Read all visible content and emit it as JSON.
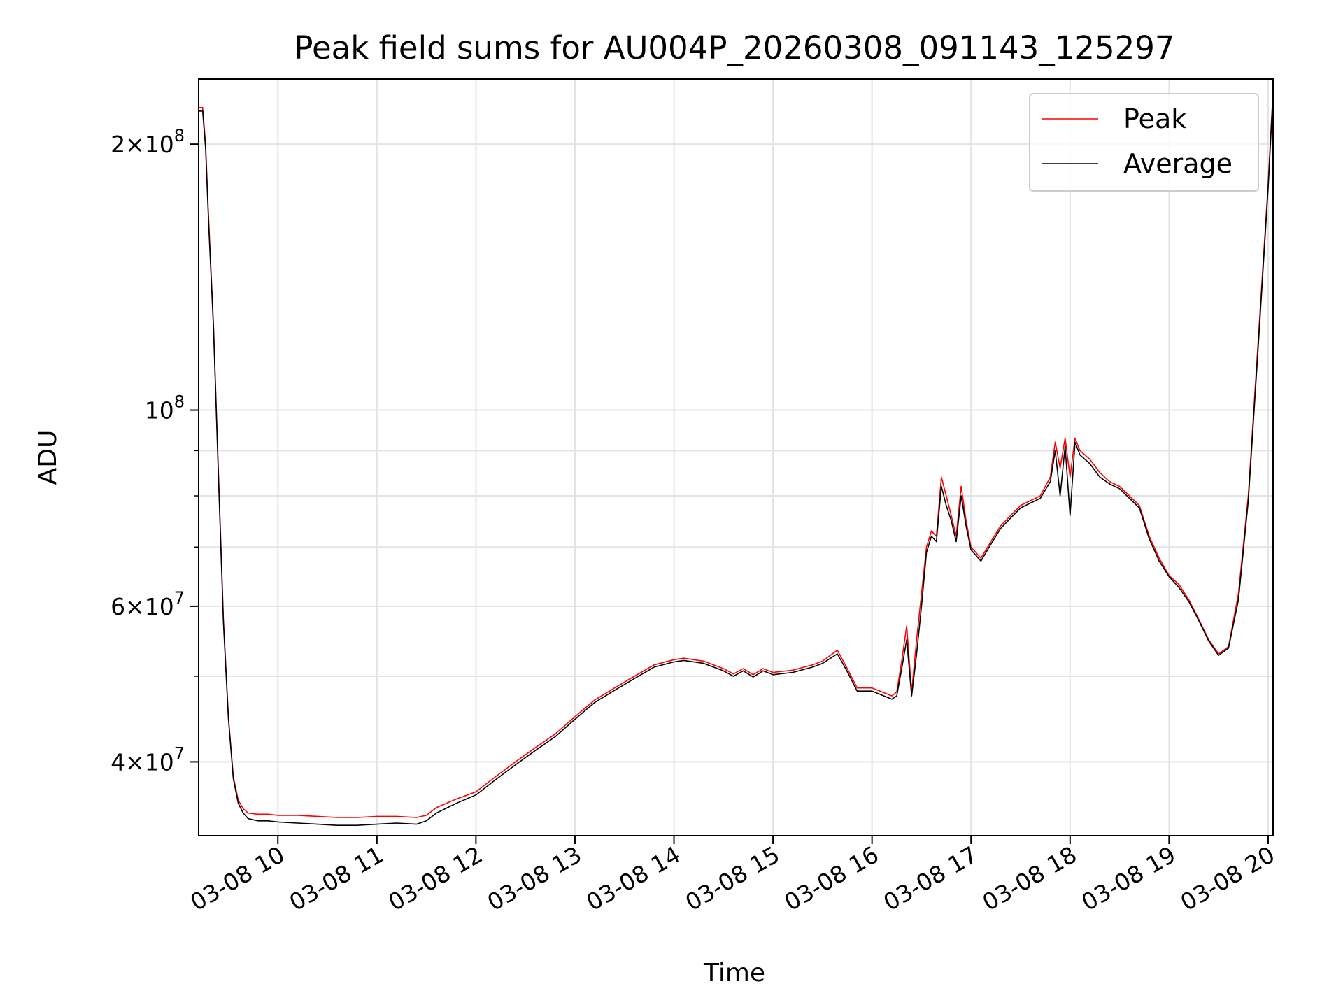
{
  "chart_data": {
    "type": "line",
    "title": "Peak field sums for AU004P_20260308_091143_125297",
    "xlabel": "Time",
    "ylabel": "ADU",
    "y_scale": "log",
    "x_unit": "hour of 2026-03-08",
    "xlim": [
      9.2,
      20.05
    ],
    "ylim": [
      33000000,
      237000000
    ],
    "x_ticks": [
      {
        "value": 10,
        "label": "03-08 10"
      },
      {
        "value": 11,
        "label": "03-08 11"
      },
      {
        "value": 12,
        "label": "03-08 12"
      },
      {
        "value": 13,
        "label": "03-08 13"
      },
      {
        "value": 14,
        "label": "03-08 14"
      },
      {
        "value": 15,
        "label": "03-08 15"
      },
      {
        "value": 16,
        "label": "03-08 16"
      },
      {
        "value": 17,
        "label": "03-08 17"
      },
      {
        "value": 18,
        "label": "03-08 18"
      },
      {
        "value": 19,
        "label": "03-08 19"
      },
      {
        "value": 20,
        "label": "03-08 20"
      }
    ],
    "y_ticks": [
      {
        "value": 40000000,
        "base": "4",
        "exp": "7"
      },
      {
        "value": 60000000,
        "base": "6",
        "exp": "7"
      },
      {
        "value": 100000000,
        "base": "",
        "exp": "8"
      },
      {
        "value": 200000000,
        "base": "2",
        "exp": "8"
      }
    ],
    "y_minor_ticks": [
      50000000,
      70000000,
      80000000,
      90000000
    ],
    "grid": true,
    "legend": {
      "position": "top-right"
    },
    "series": [
      {
        "name": "Peak",
        "color": "#ff0000",
        "x": [
          9.2,
          9.24,
          9.27,
          9.3,
          9.35,
          9.4,
          9.45,
          9.5,
          9.55,
          9.6,
          9.65,
          9.7,
          9.8,
          9.9,
          10.0,
          10.2,
          10.4,
          10.6,
          10.8,
          11.0,
          11.2,
          11.4,
          11.5,
          11.6,
          11.8,
          12.0,
          12.2,
          12.4,
          12.6,
          12.8,
          13.0,
          13.2,
          13.4,
          13.6,
          13.8,
          14.0,
          14.1,
          14.3,
          14.5,
          14.6,
          14.7,
          14.8,
          14.9,
          15.0,
          15.2,
          15.4,
          15.5,
          15.65,
          15.75,
          15.85,
          16.0,
          16.1,
          16.2,
          16.25,
          16.3,
          16.35,
          16.4,
          16.45,
          16.5,
          16.55,
          16.6,
          16.65,
          16.7,
          16.75,
          16.8,
          16.85,
          16.9,
          16.95,
          17.0,
          17.1,
          17.2,
          17.3,
          17.4,
          17.5,
          17.6,
          17.7,
          17.8,
          17.85,
          17.9,
          17.95,
          18.0,
          18.05,
          18.1,
          18.2,
          18.3,
          18.4,
          18.5,
          18.6,
          18.7,
          18.8,
          18.9,
          19.0,
          19.1,
          19.2,
          19.3,
          19.4,
          19.5,
          19.6,
          19.7,
          19.8,
          19.9,
          20.0,
          20.05
        ],
        "y": [
          220000000,
          220000000,
          200000000,
          165000000,
          125000000,
          85000000,
          58000000,
          45000000,
          38500000,
          36200000,
          35400000,
          35000000,
          34900000,
          34900000,
          34800000,
          34800000,
          34700000,
          34600000,
          34600000,
          34700000,
          34700000,
          34600000,
          34800000,
          35500000,
          36300000,
          37000000,
          38500000,
          40000000,
          41500000,
          43000000,
          45000000,
          47000000,
          48500000,
          50000000,
          51500000,
          52200000,
          52400000,
          52000000,
          51000000,
          50300000,
          51000000,
          50200000,
          51000000,
          50500000,
          50800000,
          51500000,
          52000000,
          53500000,
          51000000,
          48500000,
          48500000,
          48000000,
          47500000,
          48000000,
          52000000,
          57000000,
          48000000,
          55000000,
          62000000,
          70000000,
          73000000,
          72000000,
          84000000,
          80000000,
          76000000,
          72000000,
          82000000,
          75000000,
          70000000,
          68000000,
          71000000,
          74000000,
          76000000,
          78000000,
          79000000,
          80000000,
          84000000,
          92000000,
          86000000,
          93000000,
          84000000,
          93000000,
          90000000,
          88000000,
          85000000,
          83000000,
          82000000,
          80000000,
          78000000,
          72000000,
          68000000,
          65000000,
          63500000,
          61000000,
          58000000,
          55000000,
          53000000,
          54000000,
          62000000,
          80000000,
          120000000,
          180000000,
          230000000
        ]
      },
      {
        "name": "Average",
        "color": "#000000",
        "x": [
          9.2,
          9.24,
          9.27,
          9.3,
          9.35,
          9.4,
          9.45,
          9.5,
          9.55,
          9.6,
          9.65,
          9.7,
          9.8,
          9.9,
          10.0,
          10.2,
          10.4,
          10.6,
          10.8,
          11.0,
          11.2,
          11.4,
          11.5,
          11.6,
          11.8,
          12.0,
          12.2,
          12.4,
          12.6,
          12.8,
          13.0,
          13.2,
          13.4,
          13.6,
          13.8,
          14.0,
          14.1,
          14.3,
          14.5,
          14.6,
          14.7,
          14.8,
          14.9,
          15.0,
          15.2,
          15.4,
          15.5,
          15.65,
          15.75,
          15.85,
          16.0,
          16.1,
          16.2,
          16.25,
          16.3,
          16.35,
          16.4,
          16.45,
          16.5,
          16.55,
          16.6,
          16.65,
          16.7,
          16.75,
          16.8,
          16.85,
          16.9,
          16.95,
          17.0,
          17.1,
          17.2,
          17.3,
          17.4,
          17.5,
          17.6,
          17.7,
          17.8,
          17.85,
          17.9,
          17.95,
          18.0,
          18.05,
          18.1,
          18.2,
          18.3,
          18.4,
          18.5,
          18.6,
          18.7,
          18.8,
          18.9,
          19.0,
          19.1,
          19.2,
          19.3,
          19.4,
          19.5,
          19.6,
          19.7,
          19.8,
          19.9,
          20.0,
          20.05
        ],
        "y": [
          218000000,
          218000000,
          198000000,
          163000000,
          124000000,
          84000000,
          57500000,
          44800000,
          38300000,
          35900000,
          35000000,
          34500000,
          34300000,
          34300000,
          34200000,
          34100000,
          34000000,
          33900000,
          33900000,
          34000000,
          34100000,
          34000000,
          34300000,
          35000000,
          35900000,
          36700000,
          38200000,
          39700000,
          41200000,
          42700000,
          44700000,
          46700000,
          48200000,
          49700000,
          51200000,
          51900000,
          52100000,
          51700000,
          50700000,
          50000000,
          50700000,
          49900000,
          50700000,
          50200000,
          50500000,
          51200000,
          51700000,
          53000000,
          50600000,
          48100000,
          48100000,
          47600000,
          47100000,
          47500000,
          51000000,
          55000000,
          47500000,
          53000000,
          60000000,
          69000000,
          72000000,
          71000000,
          82000000,
          78000000,
          75000000,
          71000000,
          80000000,
          74000000,
          69500000,
          67500000,
          70500000,
          73500000,
          75500000,
          77500000,
          78500000,
          79500000,
          83000000,
          90000000,
          80000000,
          91000000,
          76000000,
          92000000,
          89000000,
          87000000,
          84000000,
          82500000,
          81500000,
          79500000,
          77500000,
          71500000,
          67500000,
          64800000,
          63000000,
          60700000,
          57800000,
          54800000,
          52800000,
          53800000,
          61000000,
          79000000,
          118000000,
          178000000,
          228000000
        ]
      }
    ]
  }
}
